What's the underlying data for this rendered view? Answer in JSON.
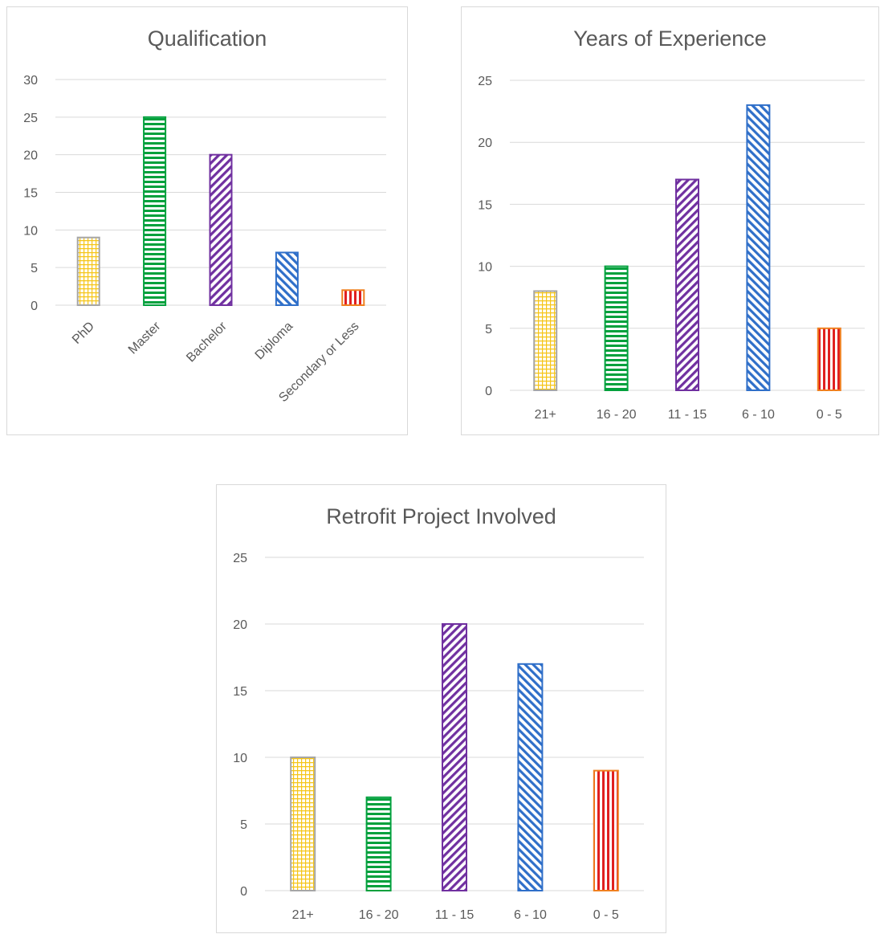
{
  "chart_data": [
    {
      "type": "bar",
      "title": "Qualification",
      "categories": [
        "PhD",
        "Master",
        "Bachelor",
        "Diploma",
        "Secondary or Less"
      ],
      "values": [
        9,
        25,
        20,
        7,
        2
      ],
      "ylim": [
        0,
        30
      ],
      "yticks": [
        "0",
        "5",
        "10",
        "15",
        "20",
        "25",
        "30"
      ],
      "grid": true,
      "xlabel": "",
      "ylabel": "",
      "x_tick_rotation": "diagonal"
    },
    {
      "type": "bar",
      "title": "Years of Experience",
      "categories": [
        "21+",
        "16 - 20",
        "11 - 15",
        "6 - 10",
        "0 - 5"
      ],
      "values": [
        8,
        10,
        17,
        23,
        5
      ],
      "ylim": [
        0,
        25
      ],
      "yticks": [
        "0",
        "5",
        "10",
        "15",
        "20",
        "25"
      ],
      "grid": true,
      "xlabel": "",
      "ylabel": ""
    },
    {
      "type": "bar",
      "title": "Retrofit Project Involved",
      "categories": [
        "21+",
        "16 - 20",
        "11 - 15",
        "6 - 10",
        "0 - 5"
      ],
      "values": [
        10,
        7,
        20,
        17,
        9
      ],
      "ylim": [
        0,
        25
      ],
      "yticks": [
        "0",
        "5",
        "10",
        "15",
        "20",
        "25"
      ],
      "grid": true,
      "xlabel": "",
      "ylabel": ""
    }
  ],
  "bar_styles": [
    {
      "pattern": "grid-pattern",
      "color": "#f5c518",
      "border": "#a6a6a6"
    },
    {
      "pattern": "horizontal-stripe-pattern",
      "color": "#00a03c",
      "border": "#00a03c"
    },
    {
      "pattern": "diagonal-up-pattern",
      "color": "#7030a0",
      "border": "#7030a0"
    },
    {
      "pattern": "diagonal-down-pattern",
      "color": "#2f6fc9",
      "border": "#2f6fc9"
    },
    {
      "pattern": "vertical-stripe-pattern",
      "color": "#e02020",
      "border": "#f08020"
    }
  ],
  "colors": {
    "gridline": "#d9d9d9",
    "tick_text": "#595959",
    "title_text": "#595959"
  }
}
